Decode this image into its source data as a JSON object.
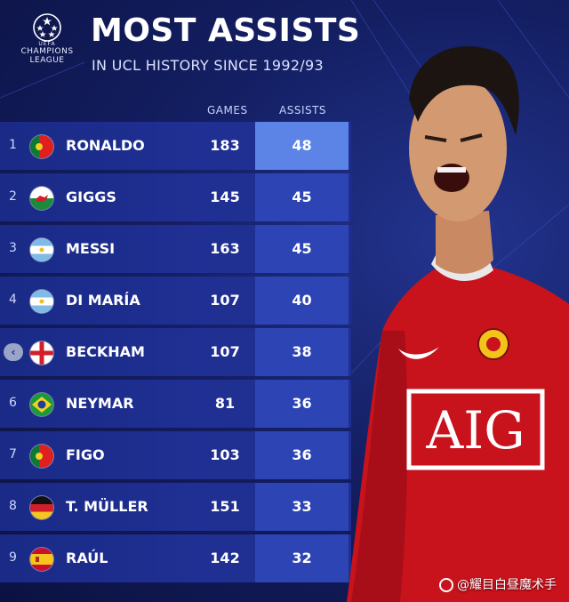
{
  "logo": {
    "uefa_text": "UEFA",
    "line1": "CHAMPIONS",
    "line2": "LEAGUE"
  },
  "header": {
    "title": "MOST ASSISTS",
    "subtitle": "IN UCL HISTORY SINCE 1992/93"
  },
  "columns": {
    "games": "GAMES",
    "assists": "ASSISTS"
  },
  "players": [
    {
      "rank": "1",
      "name": "RONALDO",
      "country": "portugal-flag",
      "games": "183",
      "assists": "48"
    },
    {
      "rank": "2",
      "name": "GIGGS",
      "country": "wales-flag",
      "games": "145",
      "assists": "45"
    },
    {
      "rank": "3",
      "name": "MESSI",
      "country": "argentina-flag",
      "games": "163",
      "assists": "45"
    },
    {
      "rank": "4",
      "name": "DI MARÍA",
      "country": "argentina-flag",
      "games": "107",
      "assists": "40"
    },
    {
      "rank": "",
      "name": "BECKHAM",
      "country": "england-flag",
      "games": "107",
      "assists": "38"
    },
    {
      "rank": "6",
      "name": "NEYMAR",
      "country": "brazil-flag",
      "games": "81",
      "assists": "36"
    },
    {
      "rank": "7",
      "name": "FIGO",
      "country": "portugal-flag",
      "games": "103",
      "assists": "36"
    },
    {
      "rank": "8",
      "name": "T. MÜLLER",
      "country": "germany-flag",
      "games": "151",
      "assists": "33"
    },
    {
      "rank": "9",
      "name": "RAÚL",
      "country": "spain-flag",
      "games": "142",
      "assists": "32"
    }
  ],
  "photo": {
    "shirt_text": "AIG"
  },
  "watermark": {
    "text": "@耀目白昼魔术手"
  },
  "colors": {
    "background": "#141f63",
    "row": "#1f2f93",
    "assists_cell": "#2d44b5",
    "highlight": "#5b84e6",
    "shirt": "#d0141e"
  }
}
